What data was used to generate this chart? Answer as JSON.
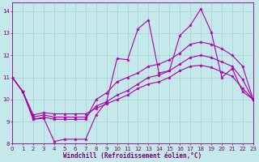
{
  "xlabel": "Windchill (Refroidissement éolien,°C)",
  "bg_color": "#c5e8ea",
  "line_color": "#aa00aa",
  "grid_color": "#99cccc",
  "xlim": [
    0,
    23
  ],
  "ylim": [
    8,
    14.4
  ],
  "xtick_labels": [
    "0",
    "1",
    "2",
    "3",
    "4",
    "5",
    "6",
    "7",
    "8",
    "9",
    "10",
    "11",
    "12",
    "13",
    "14",
    "15",
    "16",
    "17",
    "18",
    "19",
    "20",
    "21",
    "22",
    "23"
  ],
  "ytick_labels": [
    "8",
    "9",
    "10",
    "11",
    "12",
    "13",
    "14"
  ],
  "yticks": [
    8,
    9,
    10,
    11,
    12,
    13,
    14
  ],
  "series": [
    {
      "x": [
        0,
        1,
        2,
        3,
        4,
        5,
        6,
        7,
        8,
        9,
        10,
        11,
        12,
        13,
        14,
        15,
        16,
        17,
        18,
        19,
        20,
        21,
        22,
        23
      ],
      "y": [
        11.0,
        10.35,
        9.1,
        9.15,
        8.1,
        8.2,
        8.2,
        8.2,
        9.3,
        9.9,
        11.85,
        11.8,
        13.2,
        13.6,
        11.2,
        11.3,
        12.9,
        13.35,
        14.1,
        13.05,
        11.0,
        11.4,
        10.35,
        10.0
      ]
    },
    {
      "x": [
        0,
        1,
        2,
        3,
        4,
        5,
        6,
        7,
        8,
        9,
        10,
        11,
        12,
        13,
        14,
        15,
        16,
        17,
        18,
        19,
        20,
        21,
        22,
        23
      ],
      "y": [
        11.0,
        10.35,
        9.1,
        9.2,
        9.1,
        9.1,
        9.1,
        9.1,
        10.0,
        10.3,
        10.8,
        11.0,
        11.2,
        11.5,
        11.6,
        11.8,
        12.1,
        12.5,
        12.6,
        12.5,
        12.3,
        12.0,
        11.5,
        10.0
      ]
    },
    {
      "x": [
        0,
        1,
        2,
        3,
        4,
        5,
        6,
        7,
        8,
        9,
        10,
        11,
        12,
        13,
        14,
        15,
        16,
        17,
        18,
        19,
        20,
        21,
        22,
        23
      ],
      "y": [
        11.0,
        10.35,
        9.2,
        9.3,
        9.2,
        9.2,
        9.2,
        9.2,
        9.7,
        9.9,
        10.2,
        10.4,
        10.7,
        11.0,
        11.1,
        11.3,
        11.6,
        11.9,
        12.0,
        11.9,
        11.7,
        11.5,
        10.9,
        10.0
      ]
    },
    {
      "x": [
        0,
        1,
        2,
        3,
        4,
        5,
        6,
        7,
        8,
        9,
        10,
        11,
        12,
        13,
        14,
        15,
        16,
        17,
        18,
        19,
        20,
        21,
        22,
        23
      ],
      "y": [
        11.0,
        10.35,
        9.3,
        9.4,
        9.35,
        9.35,
        9.35,
        9.35,
        9.6,
        9.8,
        10.0,
        10.2,
        10.5,
        10.7,
        10.8,
        11.0,
        11.3,
        11.5,
        11.55,
        11.45,
        11.25,
        11.05,
        10.5,
        10.0
      ]
    }
  ]
}
